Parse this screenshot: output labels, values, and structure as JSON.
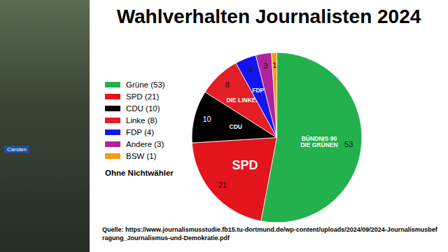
{
  "chart_data": {
    "type": "pie",
    "title": "Wahlverhalten Journalisten 2024",
    "categories": [
      "Grüne (53)",
      "SPD (21)",
      "CDU (10)",
      "Linke (8)",
      "FDP (4)",
      "Andere (3)",
      "BSW (1)"
    ],
    "values": [
      53,
      21,
      10,
      8,
      4,
      3,
      1
    ],
    "colors": [
      "#22b14c",
      "#e3141b",
      "#000000",
      "#e31e24",
      "#1414f0",
      "#b0239b",
      "#f39c12"
    ],
    "logo_texts": [
      "BÜNDNIS 90\nDIE GRÜNEN",
      "SPD",
      "CDU",
      "DIE LINKE.",
      "FDP",
      null,
      null
    ],
    "note": "Ohne Nichtwähler",
    "source": "Quelle: https://www.journalismusstudie.fb15.tu-dortmund.de/wp-content/uploads/2024/09/2024-Journalismusbefragung_Journalismus-und-Demokratie.pdf",
    "data_labels": true,
    "legend": "left"
  },
  "overlay": {
    "name_tag": "Carsten"
  }
}
